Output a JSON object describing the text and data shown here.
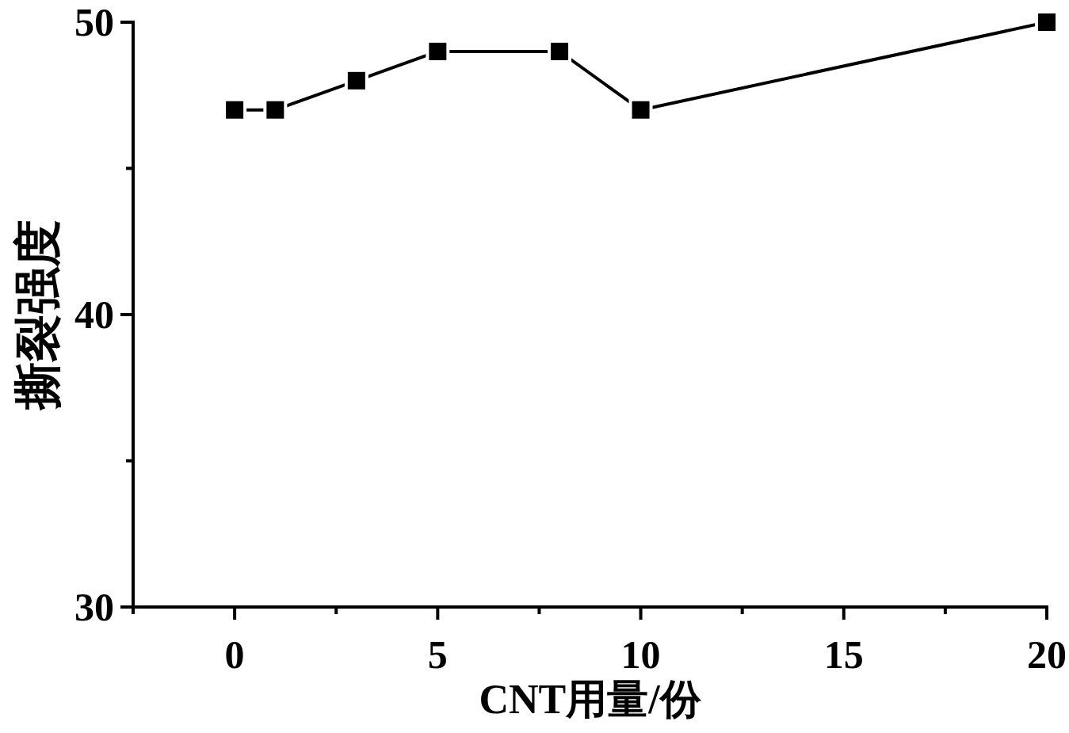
{
  "chart_data": {
    "type": "line",
    "xlabel": "CNT用量/份",
    "ylabel": "撕裂强度",
    "x": [
      0,
      1,
      3,
      5,
      8,
      10,
      20
    ],
    "series": [
      {
        "color": "#000000",
        "values": [
          47,
          47,
          48,
          49,
          49,
          47,
          50
        ]
      }
    ],
    "xlim": [
      -2.5,
      20
    ],
    "ylim": [
      30,
      50
    ],
    "xticks": [
      {
        "value": -2.5,
        "label": null
      },
      0,
      {
        "value": 2.5,
        "label": null
      },
      5,
      {
        "value": 7.5,
        "label": null
      },
      10,
      {
        "value": 12.5,
        "label": null
      },
      15,
      {
        "value": 17.5,
        "label": null
      },
      20
    ],
    "yticks": [
      30,
      {
        "value": 35,
        "label": null
      },
      40,
      {
        "value": 45,
        "label": null
      },
      50
    ],
    "marker": "square",
    "line_style": "solid"
  }
}
